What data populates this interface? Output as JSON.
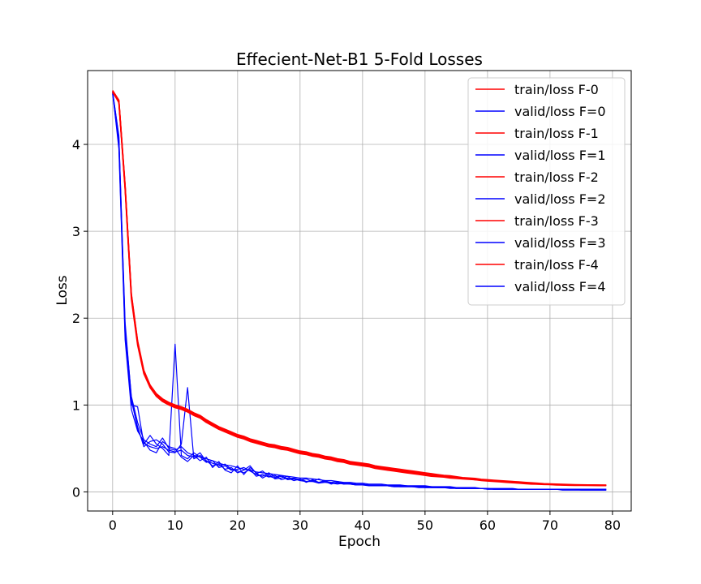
{
  "chart_data": {
    "type": "line",
    "title": "Effecient-Net-B1 5-Fold Losses",
    "xlabel": "Epoch",
    "ylabel": "Loss",
    "xlim": [
      -4,
      83
    ],
    "ylim": [
      -0.22,
      4.85
    ],
    "xticks": [
      0,
      10,
      20,
      30,
      40,
      50,
      60,
      70,
      80
    ],
    "yticks": [
      0,
      1,
      2,
      3,
      4
    ],
    "grid": true,
    "legend_position": "top-right",
    "colors": {
      "train": "#ff0000",
      "valid": "#0000ff"
    },
    "series": [
      {
        "name": "train/loss F-0",
        "kind": "train",
        "values": [
          4.6,
          4.5,
          3.52,
          2.27,
          1.73,
          1.39,
          1.22,
          1.12,
          1.06,
          1.02,
          0.99,
          0.97,
          0.94,
          0.9,
          0.87,
          0.82,
          0.78,
          0.74,
          0.71,
          0.68,
          0.65,
          0.63,
          0.6,
          0.58,
          0.56,
          0.54,
          0.53,
          0.51,
          0.5,
          0.48,
          0.46,
          0.45,
          0.43,
          0.42,
          0.4,
          0.39,
          0.37,
          0.36,
          0.34,
          0.33,
          0.32,
          0.31,
          0.29,
          0.28,
          0.27,
          0.26,
          0.25,
          0.24,
          0.23,
          0.22,
          0.21,
          0.2,
          0.19,
          0.185,
          0.18,
          0.17,
          0.16,
          0.155,
          0.15,
          0.14,
          0.135,
          0.13,
          0.125,
          0.12,
          0.115,
          0.11,
          0.105,
          0.1,
          0.095,
          0.09,
          0.09,
          0.085,
          0.085,
          0.08,
          0.08,
          0.08,
          0.08,
          0.08,
          0.078,
          0.077
        ]
      },
      {
        "name": "valid/loss F=0",
        "kind": "valid",
        "values": [
          4.6,
          4.1,
          1.9,
          1.1,
          0.8,
          0.6,
          0.55,
          0.52,
          0.62,
          0.5,
          0.48,
          0.52,
          0.45,
          0.42,
          0.4,
          0.38,
          0.36,
          0.33,
          0.31,
          0.3,
          0.28,
          0.26,
          0.25,
          0.23,
          0.22,
          0.21,
          0.2,
          0.19,
          0.18,
          0.17,
          0.16,
          0.16,
          0.15,
          0.14,
          0.13,
          0.13,
          0.12,
          0.11,
          0.11,
          0.1,
          0.1,
          0.09,
          0.09,
          0.09,
          0.08,
          0.08,
          0.08,
          0.07,
          0.07,
          0.07,
          0.07,
          0.06,
          0.06,
          0.06,
          0.06,
          0.05,
          0.05,
          0.05,
          0.05,
          0.04,
          0.04,
          0.04,
          0.04,
          0.04,
          0.04,
          0.03,
          0.03,
          0.03,
          0.03,
          0.03,
          0.03,
          0.03,
          0.03,
          0.03,
          0.03,
          0.03,
          0.03,
          0.03,
          0.03,
          0.03
        ]
      },
      {
        "name": "train/loss F-1",
        "kind": "train",
        "values": [
          4.62,
          4.5,
          3.5,
          2.25,
          1.71,
          1.37,
          1.21,
          1.11,
          1.05,
          1.01,
          0.98,
          0.96,
          0.93,
          0.89,
          0.86,
          0.81,
          0.77,
          0.73,
          0.7,
          0.67,
          0.64,
          0.62,
          0.59,
          0.57,
          0.55,
          0.53,
          0.52,
          0.5,
          0.49,
          0.47,
          0.45,
          0.44,
          0.42,
          0.41,
          0.39,
          0.38,
          0.36,
          0.35,
          0.33,
          0.32,
          0.31,
          0.3,
          0.28,
          0.27,
          0.26,
          0.25,
          0.24,
          0.23,
          0.22,
          0.21,
          0.2,
          0.19,
          0.185,
          0.18,
          0.17,
          0.16,
          0.155,
          0.15,
          0.14,
          0.135,
          0.13,
          0.125,
          0.12,
          0.115,
          0.11,
          0.105,
          0.1,
          0.095,
          0.09,
          0.09,
          0.085,
          0.085,
          0.08,
          0.08,
          0.078,
          0.077,
          0.076,
          0.076,
          0.075,
          0.075
        ]
      },
      {
        "name": "valid/loss F=1",
        "kind": "valid",
        "values": [
          4.58,
          4.0,
          1.8,
          1.0,
          0.98,
          0.55,
          0.65,
          0.55,
          0.5,
          0.42,
          1.7,
          0.42,
          0.38,
          0.45,
          0.4,
          0.34,
          0.36,
          0.28,
          0.3,
          0.25,
          0.26,
          0.28,
          0.24,
          0.2,
          0.18,
          0.22,
          0.17,
          0.19,
          0.15,
          0.16,
          0.14,
          0.15,
          0.12,
          0.15,
          0.12,
          0.11,
          0.12,
          0.1,
          0.1,
          0.09,
          0.09,
          0.08,
          0.08,
          0.08,
          0.07,
          0.07,
          0.07,
          0.07,
          0.06,
          0.06,
          0.06,
          0.06,
          0.05,
          0.05,
          0.05,
          0.05,
          0.04,
          0.04,
          0.04,
          0.04,
          0.04,
          0.03,
          0.03,
          0.03,
          0.03,
          0.03,
          0.03,
          0.03,
          0.03,
          0.03,
          0.03,
          0.03,
          0.03,
          0.03,
          0.03,
          0.02,
          0.02,
          0.02,
          0.02,
          0.02
        ]
      },
      {
        "name": "train/loss F-2",
        "kind": "train",
        "values": [
          4.61,
          4.48,
          3.48,
          2.22,
          1.69,
          1.36,
          1.2,
          1.1,
          1.04,
          1.0,
          0.97,
          0.95,
          0.92,
          0.88,
          0.85,
          0.8,
          0.76,
          0.72,
          0.69,
          0.66,
          0.63,
          0.61,
          0.58,
          0.56,
          0.54,
          0.52,
          0.51,
          0.49,
          0.48,
          0.46,
          0.44,
          0.43,
          0.41,
          0.4,
          0.38,
          0.37,
          0.35,
          0.34,
          0.32,
          0.31,
          0.3,
          0.29,
          0.27,
          0.26,
          0.25,
          0.24,
          0.23,
          0.22,
          0.21,
          0.2,
          0.19,
          0.18,
          0.175,
          0.17,
          0.16,
          0.155,
          0.15,
          0.145,
          0.14,
          0.13,
          0.125,
          0.12,
          0.115,
          0.11,
          0.105,
          0.1,
          0.095,
          0.09,
          0.088,
          0.085,
          0.083,
          0.08,
          0.078,
          0.076,
          0.075,
          0.075,
          0.074,
          0.073,
          0.072,
          0.072
        ]
      },
      {
        "name": "valid/loss F=2",
        "kind": "valid",
        "values": [
          4.59,
          4.05,
          1.85,
          1.05,
          0.75,
          0.52,
          0.58,
          0.6,
          0.55,
          0.46,
          0.45,
          0.55,
          1.2,
          0.38,
          0.42,
          0.36,
          0.3,
          0.32,
          0.26,
          0.28,
          0.22,
          0.25,
          0.3,
          0.21,
          0.24,
          0.18,
          0.16,
          0.18,
          0.14,
          0.15,
          0.13,
          0.12,
          0.13,
          0.11,
          0.13,
          0.1,
          0.1,
          0.09,
          0.1,
          0.08,
          0.08,
          0.08,
          0.07,
          0.07,
          0.07,
          0.07,
          0.06,
          0.06,
          0.06,
          0.06,
          0.06,
          0.05,
          0.05,
          0.05,
          0.05,
          0.04,
          0.04,
          0.04,
          0.04,
          0.04,
          0.04,
          0.03,
          0.03,
          0.03,
          0.03,
          0.03,
          0.03,
          0.03,
          0.03,
          0.03,
          0.03,
          0.03,
          0.03,
          0.03,
          0.03,
          0.03,
          0.03,
          0.03,
          0.03,
          0.03
        ]
      },
      {
        "name": "train/loss F-3",
        "kind": "train",
        "values": [
          4.6,
          4.49,
          3.51,
          2.26,
          1.72,
          1.38,
          1.22,
          1.12,
          1.06,
          1.02,
          0.99,
          0.97,
          0.94,
          0.9,
          0.87,
          0.82,
          0.78,
          0.74,
          0.71,
          0.68,
          0.65,
          0.63,
          0.6,
          0.58,
          0.56,
          0.54,
          0.53,
          0.51,
          0.5,
          0.48,
          0.46,
          0.45,
          0.43,
          0.42,
          0.4,
          0.39,
          0.37,
          0.36,
          0.34,
          0.33,
          0.32,
          0.31,
          0.29,
          0.28,
          0.27,
          0.26,
          0.25,
          0.24,
          0.23,
          0.22,
          0.21,
          0.2,
          0.19,
          0.185,
          0.18,
          0.17,
          0.16,
          0.155,
          0.15,
          0.14,
          0.135,
          0.13,
          0.125,
          0.12,
          0.115,
          0.11,
          0.105,
          0.1,
          0.095,
          0.09,
          0.09,
          0.085,
          0.085,
          0.08,
          0.08,
          0.08,
          0.08,
          0.078,
          0.077,
          0.076
        ]
      },
      {
        "name": "valid/loss F=3",
        "kind": "valid",
        "values": [
          4.6,
          3.95,
          1.75,
          0.95,
          0.7,
          0.58,
          0.48,
          0.45,
          0.58,
          0.52,
          0.5,
          0.4,
          0.35,
          0.42,
          0.36,
          0.4,
          0.28,
          0.35,
          0.25,
          0.22,
          0.3,
          0.2,
          0.28,
          0.22,
          0.16,
          0.2,
          0.15,
          0.16,
          0.18,
          0.13,
          0.15,
          0.11,
          0.14,
          0.11,
          0.12,
          0.09,
          0.11,
          0.09,
          0.09,
          0.08,
          0.08,
          0.07,
          0.07,
          0.07,
          0.07,
          0.06,
          0.06,
          0.06,
          0.06,
          0.05,
          0.05,
          0.05,
          0.05,
          0.05,
          0.04,
          0.04,
          0.04,
          0.04,
          0.04,
          0.04,
          0.03,
          0.03,
          0.03,
          0.03,
          0.03,
          0.03,
          0.03,
          0.03,
          0.03,
          0.03,
          0.03,
          0.03,
          0.02,
          0.02,
          0.02,
          0.02,
          0.02,
          0.02,
          0.02,
          0.02
        ]
      },
      {
        "name": "train/loss F-4",
        "kind": "train",
        "values": [
          4.62,
          4.51,
          3.53,
          2.28,
          1.74,
          1.4,
          1.23,
          1.13,
          1.07,
          1.03,
          1.0,
          0.98,
          0.95,
          0.91,
          0.88,
          0.83,
          0.79,
          0.75,
          0.72,
          0.69,
          0.66,
          0.64,
          0.61,
          0.59,
          0.57,
          0.55,
          0.54,
          0.52,
          0.51,
          0.49,
          0.47,
          0.46,
          0.44,
          0.43,
          0.41,
          0.4,
          0.38,
          0.37,
          0.35,
          0.34,
          0.33,
          0.32,
          0.3,
          0.29,
          0.28,
          0.27,
          0.26,
          0.25,
          0.24,
          0.23,
          0.22,
          0.21,
          0.2,
          0.19,
          0.185,
          0.175,
          0.165,
          0.16,
          0.155,
          0.145,
          0.14,
          0.135,
          0.13,
          0.125,
          0.12,
          0.115,
          0.11,
          0.105,
          0.1,
          0.095,
          0.093,
          0.09,
          0.088,
          0.085,
          0.083,
          0.082,
          0.081,
          0.08,
          0.079,
          0.078
        ]
      },
      {
        "name": "valid/loss F=4",
        "kind": "valid",
        "values": [
          4.61,
          4.08,
          1.95,
          1.08,
          0.72,
          0.56,
          0.52,
          0.5,
          0.52,
          0.48,
          0.46,
          0.48,
          0.42,
          0.4,
          0.45,
          0.35,
          0.33,
          0.3,
          0.32,
          0.26,
          0.24,
          0.22,
          0.26,
          0.18,
          0.2,
          0.17,
          0.19,
          0.14,
          0.16,
          0.13,
          0.15,
          0.12,
          0.12,
          0.1,
          0.11,
          0.1,
          0.09,
          0.1,
          0.09,
          0.08,
          0.08,
          0.08,
          0.07,
          0.07,
          0.07,
          0.06,
          0.06,
          0.06,
          0.06,
          0.06,
          0.05,
          0.05,
          0.05,
          0.05,
          0.05,
          0.04,
          0.04,
          0.04,
          0.04,
          0.04,
          0.03,
          0.03,
          0.03,
          0.03,
          0.03,
          0.03,
          0.03,
          0.03,
          0.03,
          0.03,
          0.03,
          0.03,
          0.03,
          0.03,
          0.03,
          0.03,
          0.03,
          0.03,
          0.03,
          0.03
        ]
      }
    ]
  }
}
